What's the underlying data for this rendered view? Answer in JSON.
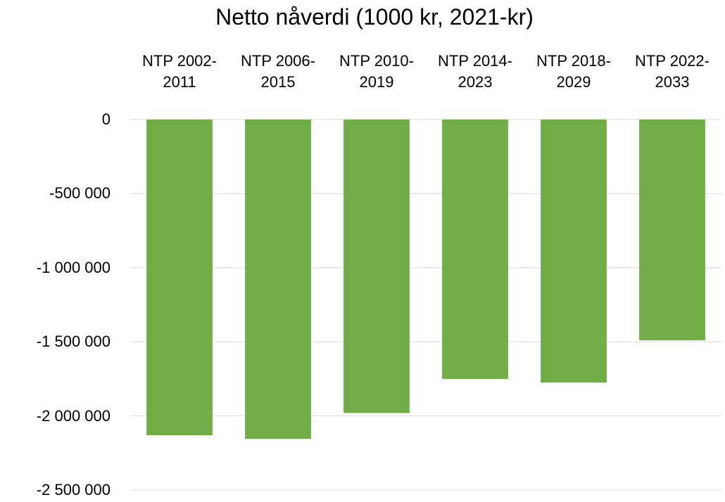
{
  "chart_data": {
    "type": "bar",
    "title": "Netto nåverdi (1000 kr, 2021-kr)",
    "categories": [
      "NTP 2002-2011",
      "NTP 2006-2015",
      "NTP 2010-2019",
      "NTP 2014-2023",
      "NTP 2018-2029",
      "NTP 2022-2033"
    ],
    "values": [
      -2130000,
      -2155000,
      -1980000,
      -1750000,
      -1775000,
      -1490000
    ],
    "color": "#70ad47",
    "ylim": [
      -2500000,
      0
    ],
    "yticks": [
      0,
      {
        "value": -500000,
        "label": "-500 000"
      },
      {
        "value": -1000000,
        "label": "-1 000 000"
      },
      {
        "value": -1500000,
        "label": "-1 500 000"
      },
      {
        "value": -2000000,
        "label": "-2 000 000"
      },
      {
        "value": -2500000,
        "label": "-2 500 000"
      }
    ],
    "grid": true
  }
}
